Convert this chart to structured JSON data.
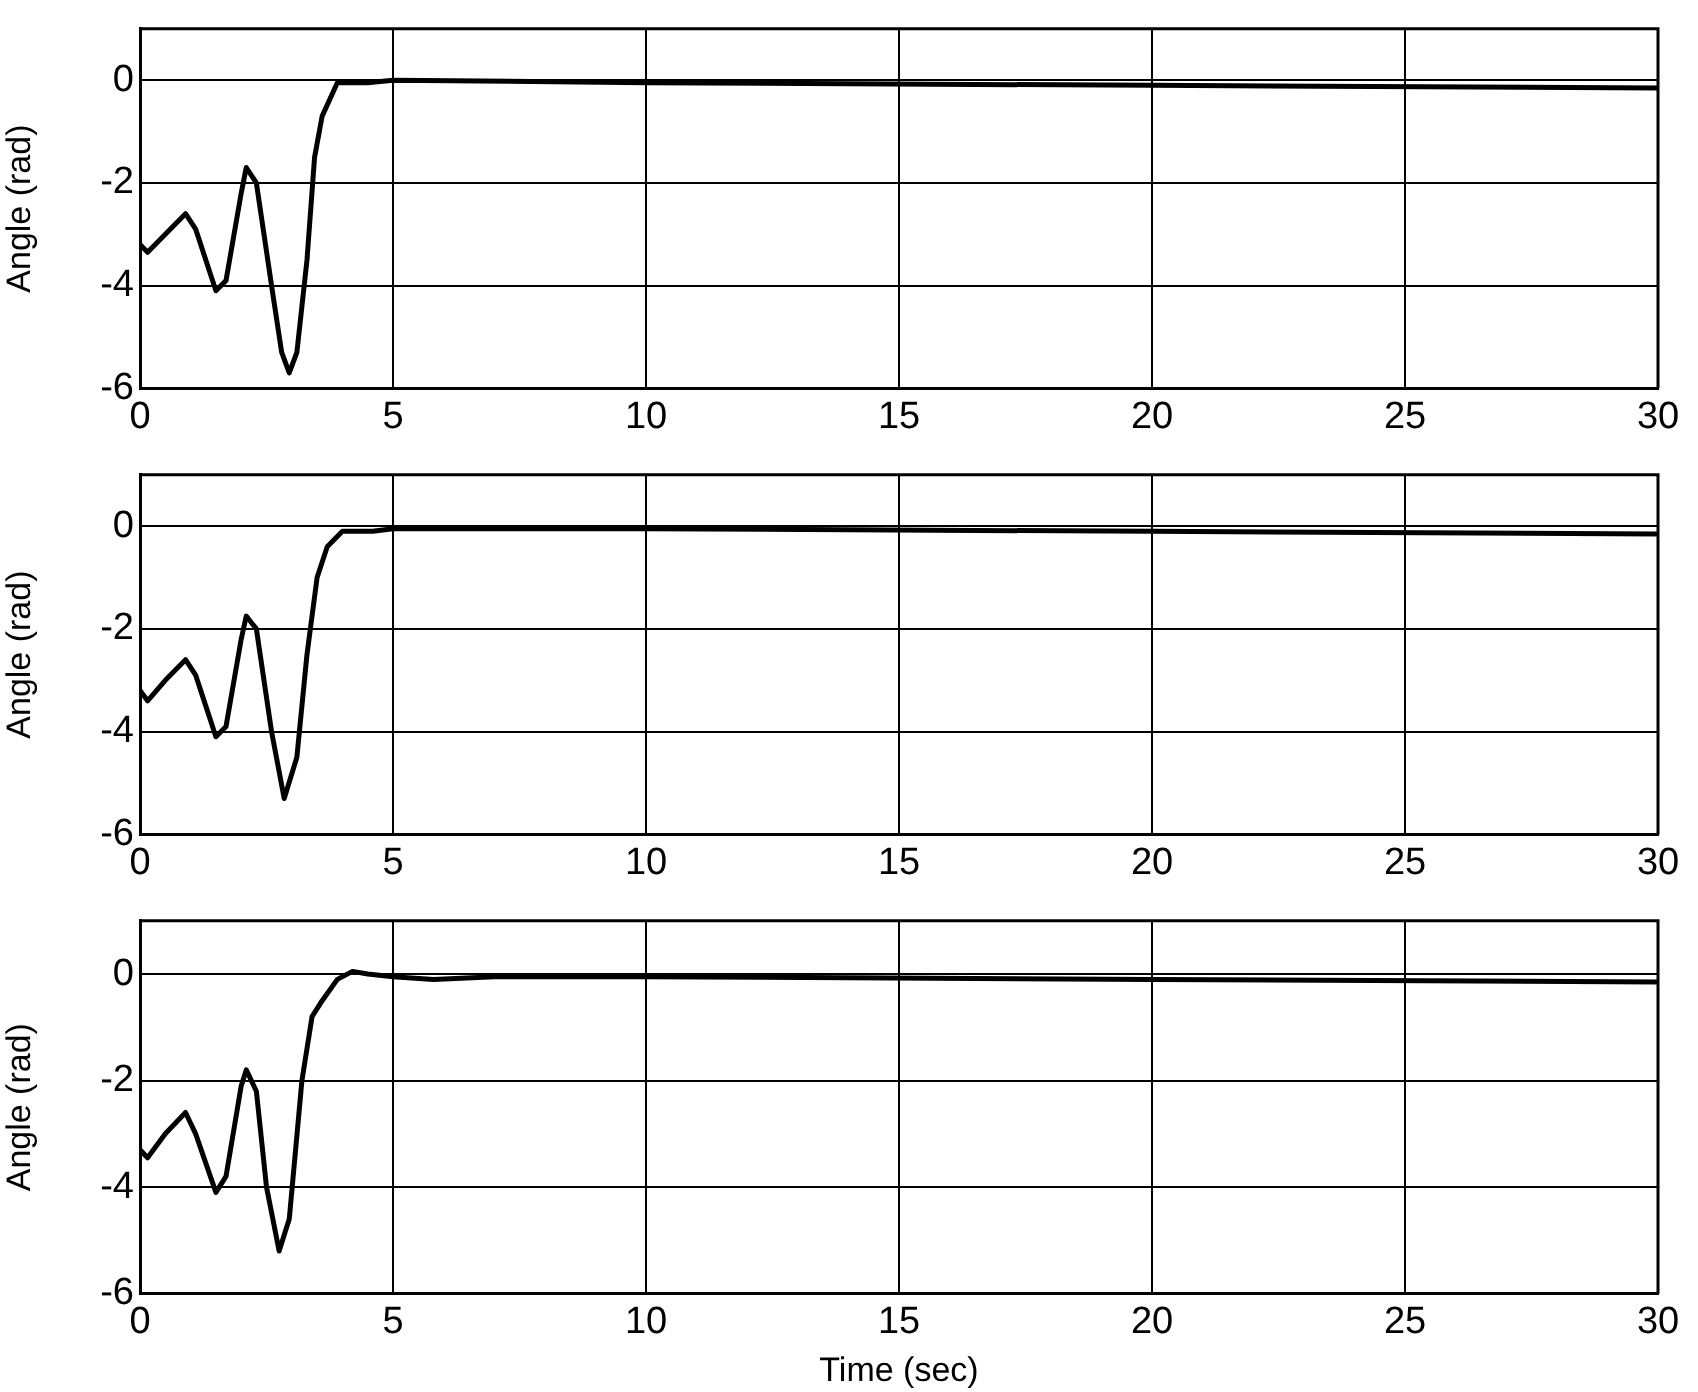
{
  "chart_data": [
    {
      "type": "line",
      "ylabel": "Angle (rad)",
      "xlim": [
        0,
        30
      ],
      "xticks": [
        0,
        5,
        10,
        15,
        20,
        25,
        30
      ],
      "ylim": [
        -6,
        1
      ],
      "yticks": [
        -6,
        -4,
        -2,
        0
      ],
      "grid": true,
      "line_style": "solid",
      "marker": "none",
      "series": [
        {
          "color": "#000000",
          "x": [
            0,
            0.15,
            0.5,
            0.9,
            1.1,
            1.5,
            1.7,
            2.0,
            2.1,
            2.3,
            2.6,
            2.8,
            2.95,
            3.1,
            3.3,
            3.45,
            3.6,
            3.9,
            4.5,
            5,
            10,
            20,
            30
          ],
          "values": [
            -3.2,
            -3.35,
            -3.0,
            -2.6,
            -2.9,
            -4.1,
            -3.9,
            -2.2,
            -1.7,
            -2.0,
            -4.0,
            -5.3,
            -5.7,
            -5.3,
            -3.5,
            -1.5,
            -0.7,
            -0.05,
            -0.05,
            0,
            -0.05,
            -0.1,
            -0.15
          ]
        }
      ]
    },
    {
      "type": "line",
      "ylabel": "Angle (rad)",
      "xlim": [
        0,
        30
      ],
      "xticks": [
        0,
        5,
        10,
        15,
        20,
        25,
        30
      ],
      "ylim": [
        -6,
        1
      ],
      "yticks": [
        -6,
        -4,
        -2,
        0
      ],
      "grid": true,
      "line_style": "solid",
      "marker": "none",
      "series": [
        {
          "color": "#000000",
          "x": [
            0,
            0.15,
            0.5,
            0.9,
            1.1,
            1.5,
            1.7,
            2.0,
            2.1,
            2.3,
            2.6,
            2.85,
            3.1,
            3.3,
            3.5,
            3.7,
            4.0,
            4.6,
            5,
            10,
            20,
            30
          ],
          "values": [
            -3.2,
            -3.4,
            -3.0,
            -2.6,
            -2.9,
            -4.1,
            -3.9,
            -2.2,
            -1.75,
            -2.0,
            -4.0,
            -5.3,
            -4.5,
            -2.5,
            -1.0,
            -0.4,
            -0.1,
            -0.1,
            -0.05,
            -0.05,
            -0.1,
            -0.15
          ]
        }
      ]
    },
    {
      "type": "line",
      "ylabel": "Angle (rad)",
      "xlabel": "Time (sec)",
      "xlim": [
        0,
        30
      ],
      "xticks": [
        0,
        5,
        10,
        15,
        20,
        25,
        30
      ],
      "ylim": [
        -6,
        1
      ],
      "yticks": [
        -6,
        -4,
        -2,
        0
      ],
      "grid": true,
      "line_style": "solid",
      "marker": "none",
      "series": [
        {
          "color": "#000000",
          "x": [
            0,
            0.15,
            0.5,
            0.9,
            1.1,
            1.5,
            1.7,
            2.0,
            2.1,
            2.3,
            2.5,
            2.75,
            2.95,
            3.2,
            3.4,
            3.6,
            3.9,
            4.2,
            4.5,
            5,
            5.8,
            7,
            10,
            20,
            30
          ],
          "values": [
            -3.3,
            -3.45,
            -3.0,
            -2.6,
            -3.0,
            -4.1,
            -3.8,
            -2.1,
            -1.8,
            -2.2,
            -4.0,
            -5.2,
            -4.6,
            -2.0,
            -0.8,
            -0.5,
            -0.1,
            0.05,
            0,
            -0.05,
            -0.1,
            -0.05,
            -0.05,
            -0.1,
            -0.15
          ]
        }
      ]
    }
  ]
}
